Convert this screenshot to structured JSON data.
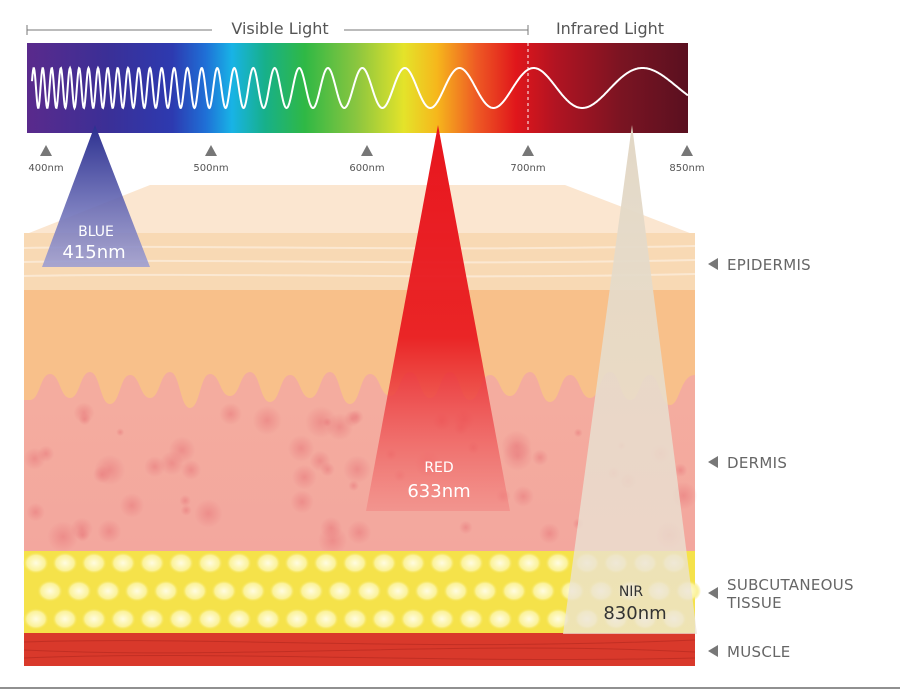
{
  "header": {
    "visible_label": "Visible Light",
    "infrared_label": "Infrared Light"
  },
  "wavelength_ticks": [
    "400nm",
    "500nm",
    "600nm",
    "700nm",
    "850nm"
  ],
  "beams": [
    {
      "name": "BLUE",
      "wavelength": "415nm",
      "color": "#4b4fa8"
    },
    {
      "name": "RED",
      "wavelength": "633nm",
      "color": "#e8141b"
    },
    {
      "name": "NIR",
      "wavelength": "830nm",
      "color": "#e8dfd1"
    }
  ],
  "layers": [
    {
      "label": "EPIDERMIS",
      "color": "#f8d9b4"
    },
    {
      "label": "DERMIS",
      "color": "#f4aaa0"
    },
    {
      "label": "SUBCUTANEOUS",
      "label2": "TISSUE",
      "color": "#f5e24a"
    },
    {
      "label": "MUSCLE",
      "color": "#d9392b"
    }
  ]
}
